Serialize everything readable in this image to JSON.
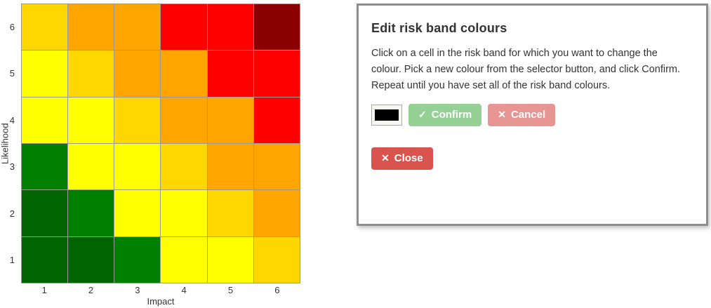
{
  "dialog": {
    "title": "Edit risk band colours",
    "instructions": "Click on a cell in the risk band for which you want to change the colour. Pick a new colour from the selector button, and click Confirm. Repeat until you have set all of the risk band colours.",
    "selected_colour": "#000000",
    "confirm": {
      "icon": "✓",
      "label": "Confirm",
      "bg": "#95d195"
    },
    "cancel": {
      "icon": "✕",
      "label": "Cancel",
      "bg": "#e69593"
    },
    "close": {
      "icon": "✕",
      "label": "Close",
      "bg": "#d9534f"
    },
    "button_text_colour": "#ffffff",
    "border_colour": "#8e8e8e"
  },
  "chart_data": {
    "type": "heatmap",
    "xlabel": "Impact",
    "ylabel": "Likelihood",
    "x_ticks": [
      "1",
      "2",
      "3",
      "4",
      "5",
      "6"
    ],
    "y_ticks": [
      "6",
      "5",
      "4",
      "3",
      "2",
      "1"
    ],
    "x_range": [
      1,
      6
    ],
    "y_range": [
      1,
      6
    ],
    "grid_line_colour": "#999999",
    "legend": "none",
    "band_palette": {
      "darkgreen": "#006400",
      "green": "#008000",
      "yellow": "#ffff00",
      "gold": "#ffd700",
      "orange": "#ffa500",
      "red": "#ff0000",
      "darkred": "#8b0000"
    },
    "rows": [
      {
        "likelihood": 6,
        "colors": [
          "#ffd700",
          "#ffa500",
          "#ffa500",
          "#ff0000",
          "#ff0000",
          "#8b0000"
        ]
      },
      {
        "likelihood": 5,
        "colors": [
          "#ffff00",
          "#ffd700",
          "#ffa500",
          "#ffa500",
          "#ff0000",
          "#ff0000"
        ]
      },
      {
        "likelihood": 4,
        "colors": [
          "#ffff00",
          "#ffff00",
          "#ffd700",
          "#ffa500",
          "#ffa500",
          "#ff0000"
        ]
      },
      {
        "likelihood": 3,
        "colors": [
          "#008000",
          "#ffff00",
          "#ffff00",
          "#ffd700",
          "#ffa500",
          "#ffa500"
        ]
      },
      {
        "likelihood": 2,
        "colors": [
          "#006400",
          "#008000",
          "#ffff00",
          "#ffff00",
          "#ffd700",
          "#ffa500"
        ]
      },
      {
        "likelihood": 1,
        "colors": [
          "#006400",
          "#006400",
          "#008000",
          "#ffff00",
          "#ffff00",
          "#ffd700"
        ]
      }
    ]
  }
}
